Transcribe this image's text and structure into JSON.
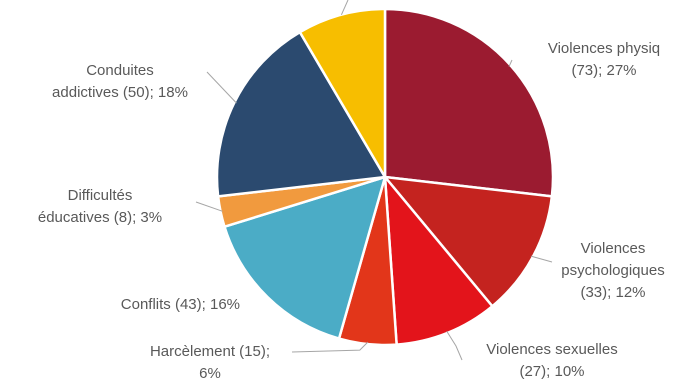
{
  "chart_data": {
    "type": "pie",
    "title": "",
    "slices": [
      {
        "label": "Violences physiq",
        "value": 73,
        "percent": "27%",
        "color": "#9B1B30",
        "text": [
          "Violences physiq",
          "(73); 27%"
        ]
      },
      {
        "label": "Violences psychologiques",
        "value": 33,
        "percent": "12%",
        "color": "#C4231F",
        "text": [
          "Violences",
          "psychologiques",
          "(33); 12%"
        ]
      },
      {
        "label": "Violences sexuelles",
        "value": 27,
        "percent": "10%",
        "color": "#E3141B",
        "text": [
          "Violences sexuelles",
          "(27); 10%"
        ]
      },
      {
        "label": "Harcèlement",
        "value": 15,
        "percent": "6%",
        "color": "#E2361A",
        "text": [
          "Harcèlement (15);",
          "6%"
        ]
      },
      {
        "label": "Conflits",
        "value": 43,
        "percent": "16%",
        "color": "#4BACC6",
        "text": [
          "Conflits (43); 16%"
        ]
      },
      {
        "label": "Difficultés éducatives",
        "value": 8,
        "percent": "3%",
        "color": "#F19A3E",
        "text": [
          "Difficultés",
          "éducatives (8); 3%"
        ]
      },
      {
        "label": "Conduites addictives",
        "value": 50,
        "percent": "18%",
        "color": "#2B4A6F",
        "text": [
          "Conduites",
          "addictives (50); 18%"
        ]
      },
      {
        "label": "",
        "value": 23,
        "percent": "",
        "color": "#F7BE00",
        "text": []
      }
    ]
  }
}
